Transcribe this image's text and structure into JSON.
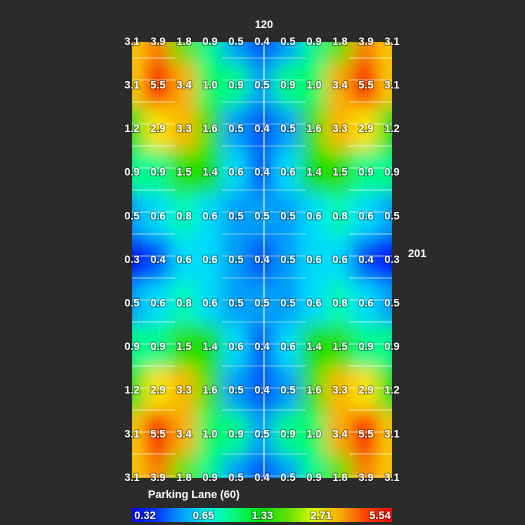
{
  "chart_data": {
    "type": "heatmap",
    "top_label": "120",
    "right_label": "201",
    "bottom_label": "Parking Lane (60)",
    "values": [
      [
        3.1,
        3.9,
        1.8,
        0.9,
        0.5,
        0.4,
        0.5,
        0.9,
        1.8,
        3.9,
        3.1
      ],
      [
        3.1,
        5.5,
        3.4,
        1.0,
        0.9,
        0.5,
        0.9,
        1.0,
        3.4,
        5.5,
        3.1
      ],
      [
        1.2,
        2.9,
        3.3,
        1.6,
        0.5,
        0.4,
        0.5,
        1.6,
        3.3,
        2.9,
        1.2
      ],
      [
        0.9,
        0.9,
        1.5,
        1.4,
        0.6,
        0.4,
        0.6,
        1.4,
        1.5,
        0.9,
        0.9
      ],
      [
        0.5,
        0.6,
        0.8,
        0.6,
        0.5,
        0.5,
        0.5,
        0.6,
        0.8,
        0.6,
        0.5
      ],
      [
        0.3,
        0.4,
        0.6,
        0.6,
        0.5,
        0.4,
        0.5,
        0.6,
        0.6,
        0.4,
        0.3
      ],
      [
        0.5,
        0.6,
        0.8,
        0.6,
        0.5,
        0.5,
        0.5,
        0.6,
        0.8,
        0.6,
        0.5
      ],
      [
        0.9,
        0.9,
        1.5,
        1.4,
        0.6,
        0.4,
        0.6,
        1.4,
        1.5,
        0.9,
        0.9
      ],
      [
        1.2,
        2.9,
        3.3,
        1.6,
        0.5,
        0.4,
        0.5,
        1.6,
        3.3,
        2.9,
        1.2
      ],
      [
        3.1,
        5.5,
        3.4,
        1.0,
        0.9,
        0.5,
        0.9,
        1.0,
        3.4,
        5.5,
        3.1
      ],
      [
        3.1,
        3.9,
        1.8,
        0.9,
        0.5,
        0.4,
        0.5,
        0.9,
        1.8,
        3.9,
        3.1
      ]
    ],
    "value_labels": [
      [
        "3.1",
        "3.9",
        "1.8",
        "0.9",
        "0.5",
        "0.4",
        "0.5",
        "0.9",
        "1.8",
        "3.9",
        "3.1"
      ],
      [
        "3.1",
        "5.5",
        "3.4",
        "1.0",
        "0.9",
        "0.5",
        "0.9",
        "1.0",
        "3.4",
        "5.5",
        "3.1"
      ],
      [
        "1.2",
        "2.9",
        "3.3",
        "1.6",
        "0.5",
        "0.4",
        "0.5",
        "1.6",
        "3.3",
        "2.9",
        "1.2"
      ],
      [
        "0.9",
        "0.9",
        "1.5",
        "1.4",
        "0.6",
        "0.4",
        "0.6",
        "1.4",
        "1.5",
        "0.9",
        "0.9"
      ],
      [
        "0.5",
        "0.6",
        "0.8",
        "0.6",
        "0.5",
        "0.5",
        "0.5",
        "0.6",
        "0.8",
        "0.6",
        "0.5"
      ],
      [
        "0.3",
        "0.4",
        "0.6",
        "0.6",
        "0.5",
        "0.4",
        "0.5",
        "0.6",
        "0.6",
        "0.4",
        "0.3"
      ],
      [
        "0.5",
        "0.6",
        "0.8",
        "0.6",
        "0.5",
        "0.5",
        "0.5",
        "0.6",
        "0.8",
        "0.6",
        "0.5"
      ],
      [
        "0.9",
        "0.9",
        "1.5",
        "1.4",
        "0.6",
        "0.4",
        "0.6",
        "1.4",
        "1.5",
        "0.9",
        "0.9"
      ],
      [
        "1.2",
        "2.9",
        "3.3",
        "1.6",
        "0.5",
        "0.4",
        "0.5",
        "1.6",
        "3.3",
        "2.9",
        "1.2"
      ],
      [
        "3.1",
        "5.5",
        "3.4",
        "1.0",
        "0.9",
        "0.5",
        "0.9",
        "1.0",
        "3.4",
        "5.5",
        "3.1"
      ],
      [
        "3.1",
        "3.9",
        "1.8",
        "0.9",
        "0.5",
        "0.4",
        "0.5",
        "0.9",
        "1.8",
        "3.9",
        "3.1"
      ]
    ],
    "color_scale": {
      "log": true,
      "ticks": [
        0.32,
        0.65,
        1.33,
        2.71,
        5.54
      ]
    }
  }
}
